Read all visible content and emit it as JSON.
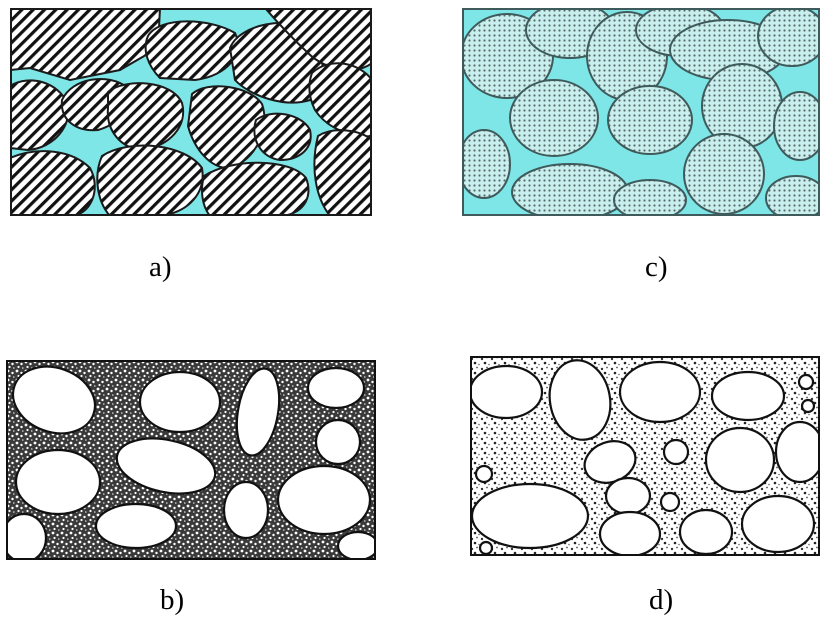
{
  "figure": {
    "panels": [
      {
        "id": "a",
        "caption": "a)",
        "matrix": "cyan",
        "grains": "hatched"
      },
      {
        "id": "b",
        "caption": "b)",
        "matrix": "speckled-dark",
        "grains": "white"
      },
      {
        "id": "c",
        "caption": "c)",
        "matrix": "cyan",
        "grains": "dotted"
      },
      {
        "id": "d",
        "caption": "d)",
        "matrix": "speckled-light",
        "grains": "white"
      }
    ]
  },
  "colors": {
    "pore_fill": "#7fe6e8",
    "outline": "#1a1a1a",
    "grain_white": "#ffffff",
    "hatch": "#111111",
    "dot": "#5a6a6a"
  }
}
